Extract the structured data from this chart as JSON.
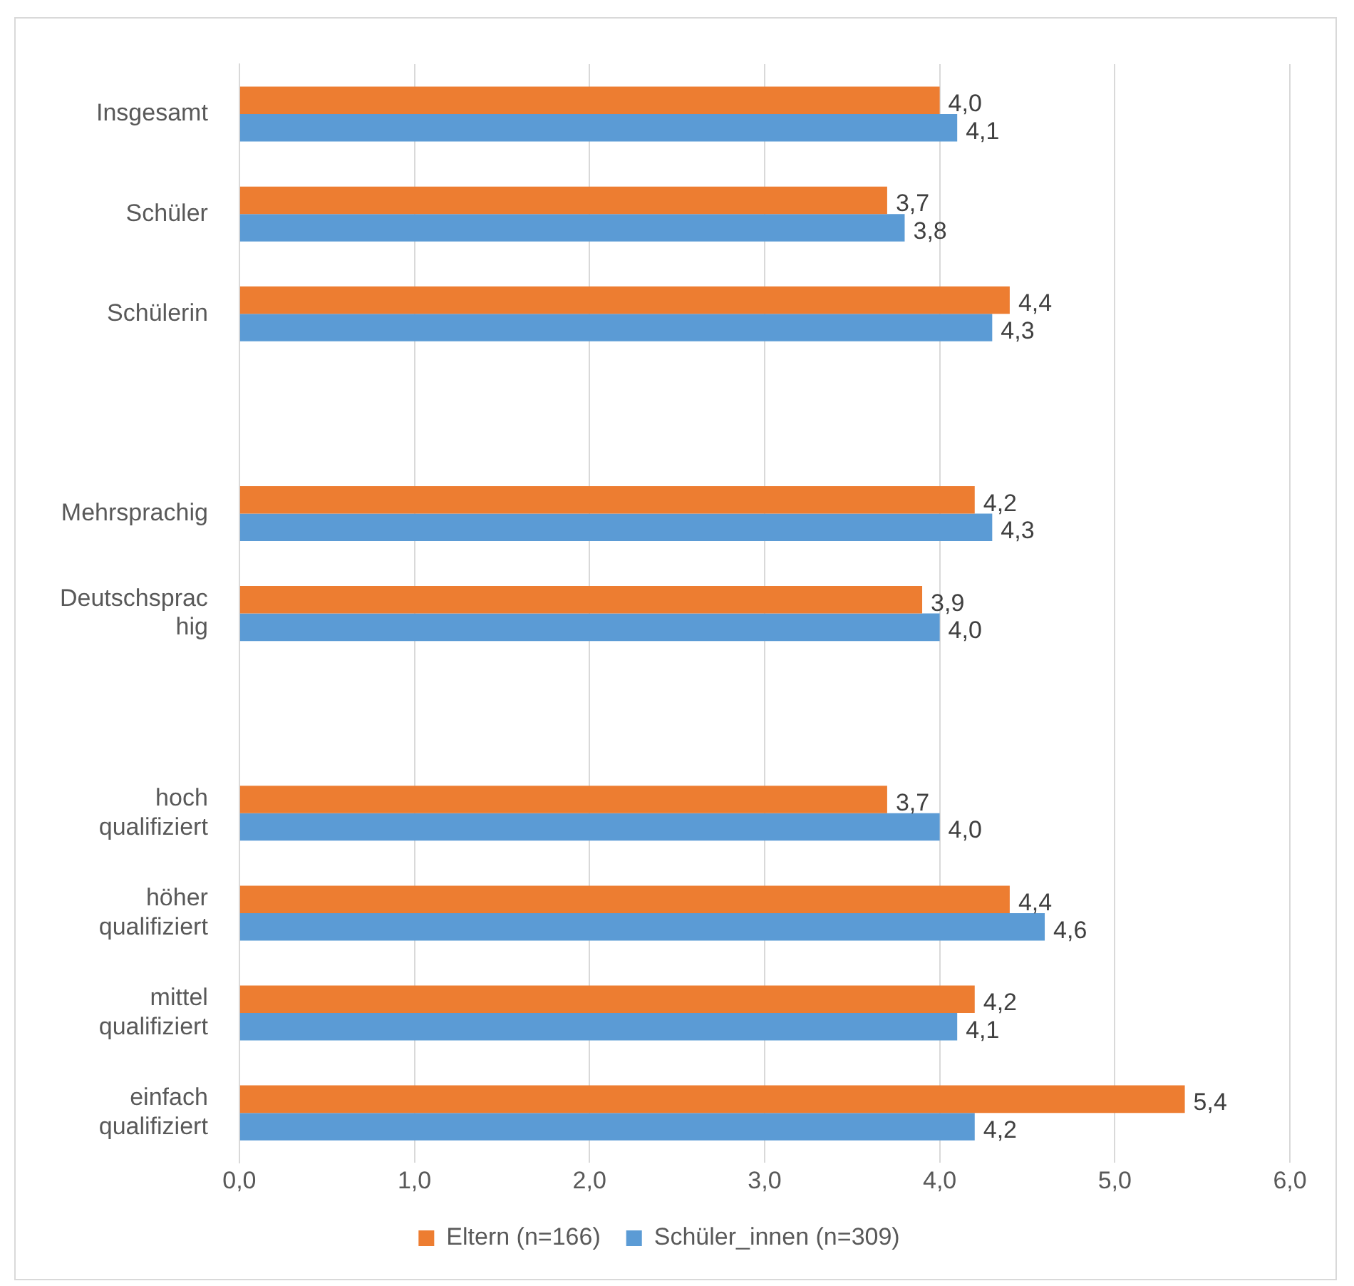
{
  "chart_data": {
    "type": "bar",
    "orientation": "horizontal",
    "categories": [
      "Insgesamt",
      "Schüler",
      "Schülerin",
      null,
      "Mehrsprachig",
      "Deutschsprachig",
      null,
      "hoch qualifiziert",
      "höher qualifiziert",
      "mittel qualifiziert",
      "einfach qualifiziert"
    ],
    "series": [
      {
        "name": "Eltern (n=166)",
        "color": "#ed7d31",
        "values": [
          4.0,
          3.7,
          4.4,
          null,
          4.2,
          3.9,
          null,
          3.7,
          4.4,
          4.2,
          5.4
        ],
        "value_labels": [
          "4,0",
          "3,7",
          "4,4",
          null,
          "4,2",
          "3,9",
          null,
          "3,7",
          "4,4",
          "4,2",
          "5,4"
        ]
      },
      {
        "name": "Schüler_innen (n=309)",
        "color": "#5b9bd5",
        "values": [
          4.1,
          3.8,
          4.3,
          null,
          4.3,
          4.0,
          null,
          4.0,
          4.6,
          4.1,
          4.2
        ],
        "value_labels": [
          "4,1",
          "3,8",
          "4,3",
          null,
          "4,3",
          "4,0",
          null,
          "4,0",
          "4,6",
          "4,1",
          "4,2"
        ]
      }
    ],
    "xlim": [
      0,
      6
    ],
    "xticks": [
      {
        "value": 0,
        "label": "0,0"
      },
      {
        "value": 1,
        "label": "1,0"
      },
      {
        "value": 2,
        "label": "2,0"
      },
      {
        "value": 3,
        "label": "3,0"
      },
      {
        "value": 4,
        "label": "4,0"
      },
      {
        "value": 5,
        "label": "5,0"
      },
      {
        "value": 6,
        "label": "6,0"
      }
    ],
    "grid": "x",
    "legend": "bottom"
  }
}
